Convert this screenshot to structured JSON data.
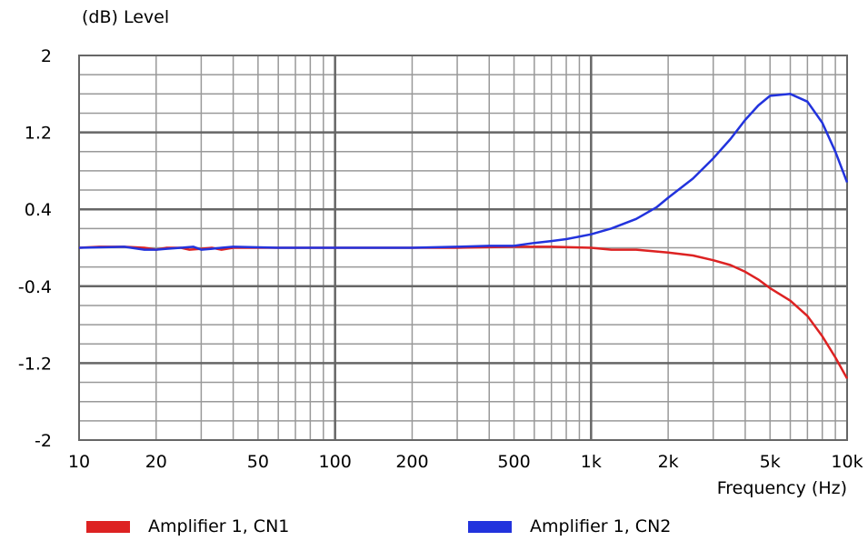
{
  "chart_data": {
    "type": "line",
    "ylabel": "(dB)  Level",
    "xlabel": "Frequency  (Hz)",
    "x_scale": "log",
    "xlim": [
      10,
      10000
    ],
    "ylim": [
      -2,
      2
    ],
    "y_ticks": [
      "2",
      "1.2",
      "0.4",
      "-0.4",
      "-1.2",
      "-2"
    ],
    "y_tick_values": [
      2,
      1.2,
      0.4,
      -0.4,
      -1.2,
      -2
    ],
    "x_ticks": [
      "10",
      "20",
      "50",
      "100",
      "200",
      "500",
      "1k",
      "2k",
      "5k",
      "10k"
    ],
    "x_tick_values": [
      10,
      20,
      50,
      100,
      200,
      500,
      1000,
      2000,
      5000,
      10000
    ],
    "grid": true,
    "legend_position": "bottom",
    "series": [
      {
        "name": "Amplifier 1, CN1",
        "color": "#dd2222",
        "points": [
          [
            10,
            0
          ],
          [
            12,
            0.01
          ],
          [
            15,
            0.01
          ],
          [
            18,
            0
          ],
          [
            20,
            -0.02
          ],
          [
            22,
            0
          ],
          [
            25,
            0
          ],
          [
            27,
            -0.02
          ],
          [
            30,
            -0.01
          ],
          [
            33,
            0
          ],
          [
            36,
            -0.02
          ],
          [
            40,
            0
          ],
          [
            60,
            0
          ],
          [
            100,
            0
          ],
          [
            200,
            0
          ],
          [
            300,
            0
          ],
          [
            500,
            0.01
          ],
          [
            700,
            0.01
          ],
          [
            1000,
            0
          ],
          [
            1200,
            -0.02
          ],
          [
            1500,
            -0.02
          ],
          [
            2000,
            -0.05
          ],
          [
            2500,
            -0.08
          ],
          [
            3000,
            -0.13
          ],
          [
            3500,
            -0.18
          ],
          [
            4000,
            -0.25
          ],
          [
            4500,
            -0.33
          ],
          [
            5000,
            -0.42
          ],
          [
            6000,
            -0.55
          ],
          [
            7000,
            -0.71
          ],
          [
            8000,
            -0.92
          ],
          [
            9000,
            -1.14
          ],
          [
            10000,
            -1.36
          ]
        ]
      },
      {
        "name": "Amplifier 1, CN2",
        "color": "#2233dd",
        "points": [
          [
            10,
            0
          ],
          [
            15,
            0.01
          ],
          [
            18,
            -0.02
          ],
          [
            20,
            -0.02
          ],
          [
            22,
            -0.01
          ],
          [
            25,
            0
          ],
          [
            28,
            0.01
          ],
          [
            30,
            -0.02
          ],
          [
            33,
            -0.01
          ],
          [
            36,
            0
          ],
          [
            40,
            0.01
          ],
          [
            60,
            0
          ],
          [
            100,
            0
          ],
          [
            200,
            0
          ],
          [
            300,
            0.01
          ],
          [
            400,
            0.02
          ],
          [
            500,
            0.02
          ],
          [
            600,
            0.05
          ],
          [
            700,
            0.07
          ],
          [
            800,
            0.09
          ],
          [
            1000,
            0.14
          ],
          [
            1200,
            0.2
          ],
          [
            1500,
            0.3
          ],
          [
            1800,
            0.42
          ],
          [
            2000,
            0.52
          ],
          [
            2500,
            0.72
          ],
          [
            3000,
            0.93
          ],
          [
            3500,
            1.13
          ],
          [
            4000,
            1.33
          ],
          [
            4500,
            1.48
          ],
          [
            5000,
            1.58
          ],
          [
            6000,
            1.6
          ],
          [
            7000,
            1.52
          ],
          [
            8000,
            1.3
          ],
          [
            9000,
            1
          ],
          [
            10000,
            0.68
          ]
        ]
      }
    ]
  }
}
